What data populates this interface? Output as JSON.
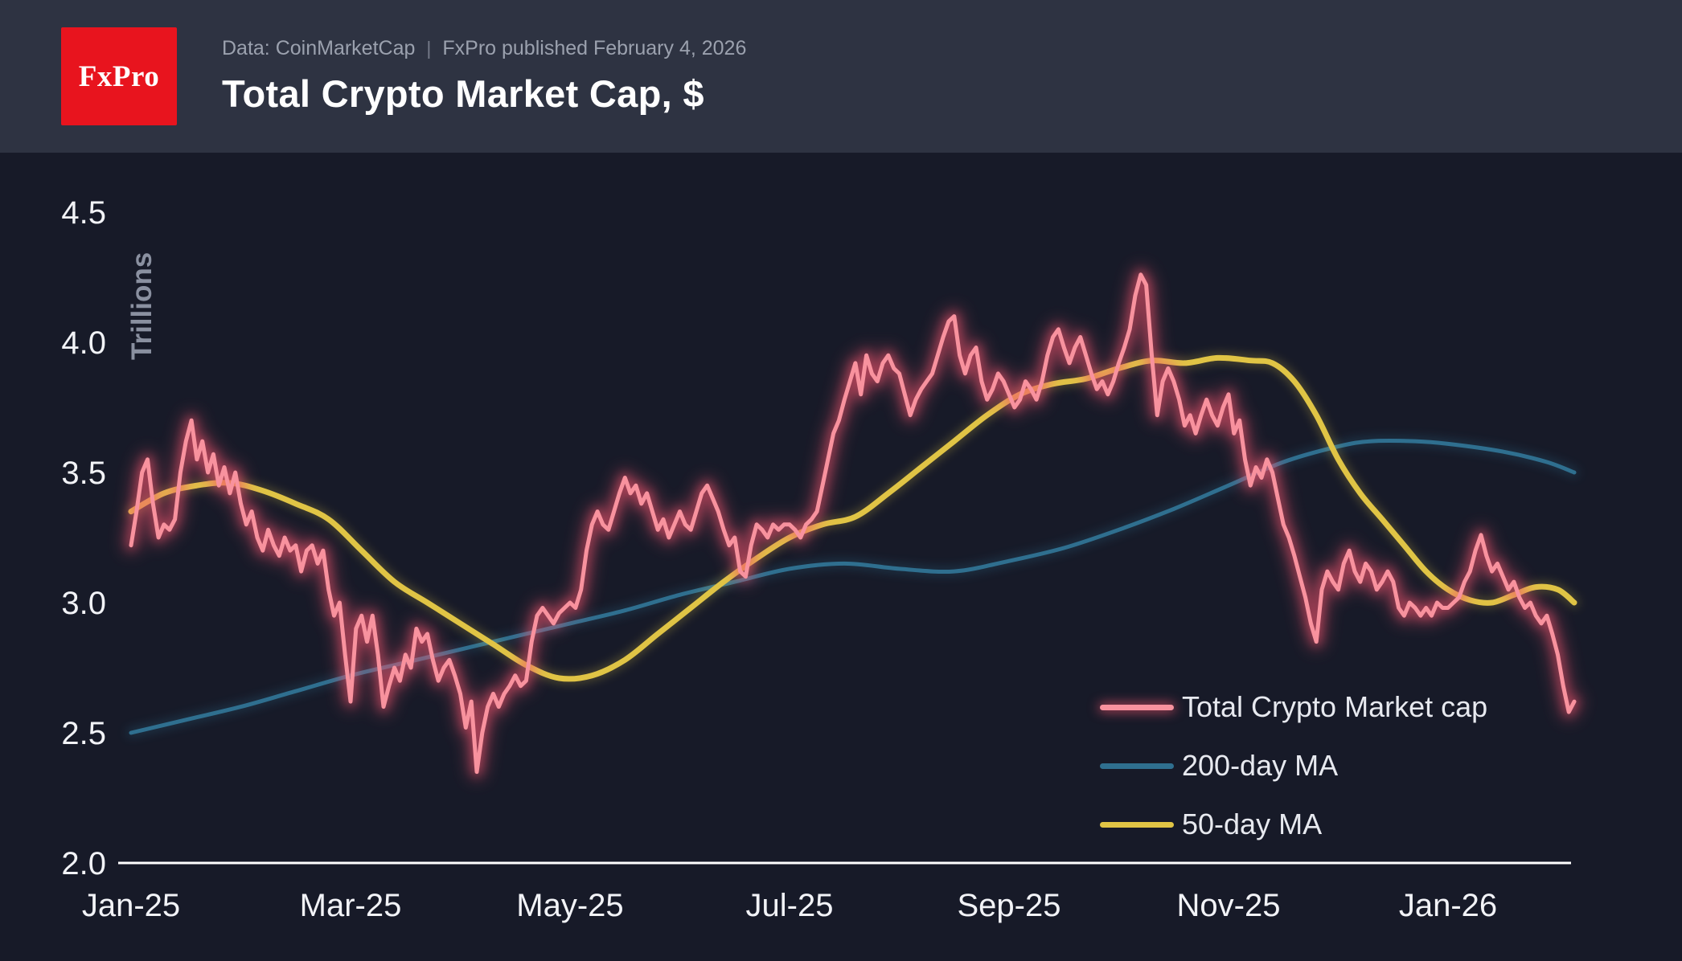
{
  "header": {
    "logo_text": "FxPro",
    "subtitle_source": "Data: CoinMarketCap",
    "subtitle_separator": "|",
    "subtitle_published": "FxPro published February 4, 2026",
    "title": "Total Crypto Market Cap, $"
  },
  "colors": {
    "background": "#171a28",
    "header_background": "#2e3342",
    "logo_red": "#e8141e",
    "axis_line": "#ffffff",
    "axis_text": "#f2f3f7",
    "y_axis_title_text": "#8a90a0",
    "subtitle_text": "#9ba1ae",
    "total_line": "#f8929e",
    "total_glow": "#f3556e",
    "ma200_line": "#2f6f8f",
    "ma50_line": "#e0c445"
  },
  "chart_data": {
    "type": "line",
    "title": "Total Crypto Market Cap, $",
    "xlabel": "",
    "ylabel": "Trillions",
    "x_unit": "months since Jan-2025",
    "xlim": [
      0,
      13.5
    ],
    "ylim": [
      2.0,
      4.5
    ],
    "grid": false,
    "legend_position": "bottom-right",
    "x_ticks": [
      {
        "pos": 0,
        "label": "Jan-25"
      },
      {
        "pos": 2,
        "label": "Mar-25"
      },
      {
        "pos": 4,
        "label": "May-25"
      },
      {
        "pos": 6,
        "label": "Jul-25"
      },
      {
        "pos": 8,
        "label": "Sep-25"
      },
      {
        "pos": 10,
        "label": "Nov-25"
      },
      {
        "pos": 12,
        "label": "Jan-26"
      }
    ],
    "y_ticks": [
      {
        "pos": 2.0,
        "label": "2.0"
      },
      {
        "pos": 2.5,
        "label": "2.5"
      },
      {
        "pos": 3.0,
        "label": "3.0"
      },
      {
        "pos": 3.5,
        "label": "3.5"
      },
      {
        "pos": 4.0,
        "label": "4.0"
      },
      {
        "pos": 4.5,
        "label": "4.5"
      }
    ],
    "series": [
      {
        "name": "Total Crypto Market cap",
        "color": "#f8929e",
        "glow": true,
        "glow_color": "#f3556e",
        "smooth": false,
        "width": 5,
        "start": 0,
        "step": 0.05,
        "values": [
          3.22,
          3.35,
          3.5,
          3.55,
          3.38,
          3.25,
          3.3,
          3.28,
          3.32,
          3.5,
          3.62,
          3.7,
          3.55,
          3.62,
          3.5,
          3.57,
          3.45,
          3.52,
          3.42,
          3.5,
          3.38,
          3.3,
          3.35,
          3.25,
          3.2,
          3.28,
          3.22,
          3.18,
          3.25,
          3.2,
          3.22,
          3.12,
          3.2,
          3.22,
          3.15,
          3.2,
          3.05,
          2.95,
          3.0,
          2.8,
          2.62,
          2.9,
          2.95,
          2.85,
          2.95,
          2.8,
          2.6,
          2.68,
          2.75,
          2.7,
          2.8,
          2.75,
          2.9,
          2.85,
          2.88,
          2.78,
          2.7,
          2.75,
          2.78,
          2.72,
          2.65,
          2.52,
          2.62,
          2.35,
          2.5,
          2.6,
          2.65,
          2.6,
          2.65,
          2.68,
          2.72,
          2.68,
          2.7,
          2.85,
          2.95,
          2.98,
          2.95,
          2.92,
          2.96,
          2.98,
          3.0,
          2.98,
          3.05,
          3.2,
          3.3,
          3.35,
          3.3,
          3.28,
          3.35,
          3.42,
          3.48,
          3.42,
          3.45,
          3.38,
          3.42,
          3.35,
          3.28,
          3.32,
          3.25,
          3.3,
          3.35,
          3.3,
          3.28,
          3.35,
          3.42,
          3.45,
          3.4,
          3.35,
          3.28,
          3.22,
          3.25,
          3.12,
          3.1,
          3.22,
          3.3,
          3.28,
          3.25,
          3.3,
          3.28,
          3.3,
          3.3,
          3.28,
          3.25,
          3.3,
          3.32,
          3.35,
          3.45,
          3.55,
          3.65,
          3.7,
          3.78,
          3.85,
          3.92,
          3.8,
          3.95,
          3.88,
          3.85,
          3.92,
          3.95,
          3.9,
          3.88,
          3.8,
          3.72,
          3.78,
          3.82,
          3.85,
          3.88,
          3.95,
          4.02,
          4.08,
          4.1,
          3.95,
          3.88,
          3.95,
          3.98,
          3.85,
          3.78,
          3.82,
          3.88,
          3.85,
          3.8,
          3.75,
          3.78,
          3.85,
          3.82,
          3.78,
          3.85,
          3.95,
          4.02,
          4.05,
          3.98,
          3.92,
          3.98,
          4.02,
          3.95,
          3.88,
          3.82,
          3.85,
          3.8,
          3.85,
          3.92,
          3.98,
          4.05,
          4.18,
          4.26,
          4.22,
          3.95,
          3.72,
          3.85,
          3.9,
          3.85,
          3.78,
          3.68,
          3.72,
          3.65,
          3.72,
          3.78,
          3.72,
          3.68,
          3.75,
          3.8,
          3.65,
          3.7,
          3.55,
          3.45,
          3.52,
          3.48,
          3.55,
          3.5,
          3.4,
          3.3,
          3.25,
          3.18,
          3.1,
          3.02,
          2.92,
          2.85,
          3.05,
          3.12,
          3.08,
          3.05,
          3.15,
          3.2,
          3.12,
          3.08,
          3.15,
          3.12,
          3.05,
          3.08,
          3.12,
          3.08,
          2.98,
          2.95,
          3.0,
          2.98,
          2.95,
          2.98,
          2.95,
          3.0,
          2.98,
          2.98,
          3.0,
          3.02,
          3.08,
          3.12,
          3.2,
          3.26,
          3.18,
          3.12,
          3.15,
          3.1,
          3.05,
          3.08,
          3.02,
          2.98,
          3.0,
          2.95,
          2.92,
          2.95,
          2.88,
          2.8,
          2.68,
          2.58,
          2.62
        ]
      },
      {
        "name": "200-day MA",
        "color": "#2f6f8f",
        "glow": false,
        "smooth": true,
        "width": 5,
        "points": [
          [
            0,
            2.5
          ],
          [
            0.5,
            2.55
          ],
          [
            1,
            2.6
          ],
          [
            1.5,
            2.66
          ],
          [
            2,
            2.72
          ],
          [
            2.5,
            2.77
          ],
          [
            3,
            2.82
          ],
          [
            3.5,
            2.87
          ],
          [
            4,
            2.92
          ],
          [
            4.5,
            2.97
          ],
          [
            5,
            3.03
          ],
          [
            5.5,
            3.08
          ],
          [
            6,
            3.13
          ],
          [
            6.5,
            3.15
          ],
          [
            7,
            3.13
          ],
          [
            7.5,
            3.12
          ],
          [
            8,
            3.16
          ],
          [
            8.5,
            3.21
          ],
          [
            9,
            3.28
          ],
          [
            9.5,
            3.36
          ],
          [
            10,
            3.45
          ],
          [
            10.5,
            3.54
          ],
          [
            11,
            3.6
          ],
          [
            11.3,
            3.62
          ],
          [
            11.7,
            3.62
          ],
          [
            12,
            3.61
          ],
          [
            12.5,
            3.58
          ],
          [
            12.9,
            3.54
          ],
          [
            13.15,
            3.5
          ]
        ]
      },
      {
        "name": "50-day MA",
        "color": "#e0c445",
        "glow": false,
        "smooth": true,
        "width": 7,
        "points": [
          [
            0,
            3.35
          ],
          [
            0.3,
            3.42
          ],
          [
            0.6,
            3.45
          ],
          [
            0.9,
            3.46
          ],
          [
            1.2,
            3.43
          ],
          [
            1.5,
            3.38
          ],
          [
            1.8,
            3.32
          ],
          [
            2.1,
            3.2
          ],
          [
            2.4,
            3.08
          ],
          [
            2.7,
            3.0
          ],
          [
            3.0,
            2.92
          ],
          [
            3.3,
            2.84
          ],
          [
            3.6,
            2.76
          ],
          [
            3.9,
            2.71
          ],
          [
            4.2,
            2.72
          ],
          [
            4.5,
            2.78
          ],
          [
            4.8,
            2.88
          ],
          [
            5.1,
            2.98
          ],
          [
            5.4,
            3.08
          ],
          [
            5.7,
            3.17
          ],
          [
            6.0,
            3.25
          ],
          [
            6.3,
            3.3
          ],
          [
            6.6,
            3.33
          ],
          [
            6.9,
            3.42
          ],
          [
            7.2,
            3.52
          ],
          [
            7.5,
            3.62
          ],
          [
            7.8,
            3.72
          ],
          [
            8.1,
            3.8
          ],
          [
            8.4,
            3.84
          ],
          [
            8.7,
            3.86
          ],
          [
            9.0,
            3.9
          ],
          [
            9.3,
            3.93
          ],
          [
            9.6,
            3.92
          ],
          [
            9.9,
            3.94
          ],
          [
            10.2,
            3.93
          ],
          [
            10.4,
            3.92
          ],
          [
            10.6,
            3.85
          ],
          [
            10.8,
            3.72
          ],
          [
            11.0,
            3.55
          ],
          [
            11.2,
            3.42
          ],
          [
            11.4,
            3.32
          ],
          [
            11.6,
            3.22
          ],
          [
            11.8,
            3.12
          ],
          [
            12.0,
            3.05
          ],
          [
            12.2,
            3.01
          ],
          [
            12.4,
            3.0
          ],
          [
            12.6,
            3.03
          ],
          [
            12.8,
            3.06
          ],
          [
            13.0,
            3.05
          ],
          [
            13.15,
            3.0
          ]
        ]
      }
    ]
  }
}
